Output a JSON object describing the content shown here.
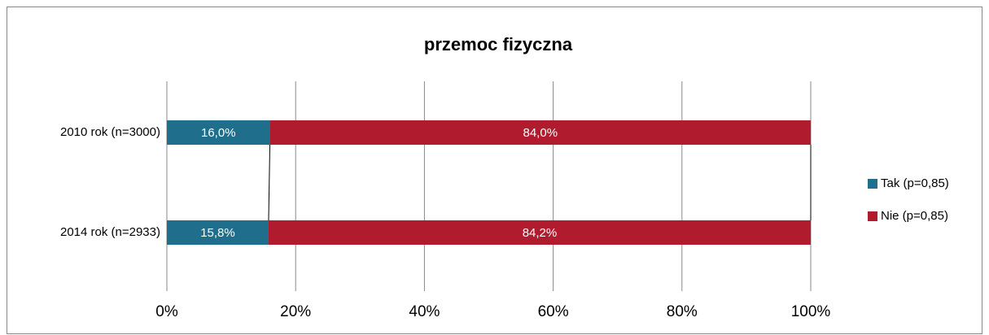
{
  "chart_data": {
    "type": "stacked_bar_horizontal",
    "title": "przemoc fizyczna",
    "categories": [
      "2010 rok (n=3000)",
      "2014 rok (n=2933)"
    ],
    "series": [
      {
        "name": "Tak (p=0,85)",
        "color": "#1f6e8c",
        "values": [
          16.0,
          15.8
        ],
        "value_labels": [
          "16,0%",
          "15,8%"
        ]
      },
      {
        "name": "Nie (p=0,85)",
        "color": "#b01c2e",
        "values": [
          84.0,
          84.2
        ],
        "value_labels": [
          "84,0%",
          "84,2%"
        ]
      }
    ],
    "xlim": [
      0,
      100
    ],
    "xticks": [
      {
        "value": 0,
        "label": "0%"
      },
      {
        "value": 20,
        "label": "20%"
      },
      {
        "value": 40,
        "label": "40%"
      },
      {
        "value": 60,
        "label": "60%"
      },
      {
        "value": 80,
        "label": "80%"
      },
      {
        "value": 100,
        "label": "100%"
      }
    ],
    "grid": true,
    "legend": "right"
  }
}
